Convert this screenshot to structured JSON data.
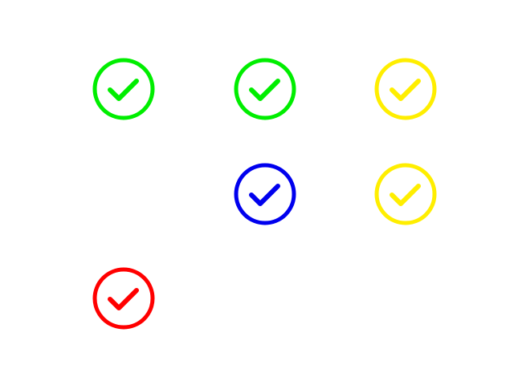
{
  "icons": [
    {
      "row": 0,
      "col": 0,
      "color": "#00ee00",
      "icon": "check-circle-icon"
    },
    {
      "row": 0,
      "col": 1,
      "color": "#00ee00",
      "icon": "check-circle-icon"
    },
    {
      "row": 0,
      "col": 2,
      "color": "#ffee00",
      "icon": "check-circle-icon"
    },
    {
      "row": 1,
      "col": 1,
      "color": "#0000ee",
      "icon": "check-circle-icon"
    },
    {
      "row": 1,
      "col": 2,
      "color": "#ffee00",
      "icon": "check-circle-icon"
    },
    {
      "row": 2,
      "col": 0,
      "color": "#ff0000",
      "icon": "check-circle-icon"
    }
  ]
}
